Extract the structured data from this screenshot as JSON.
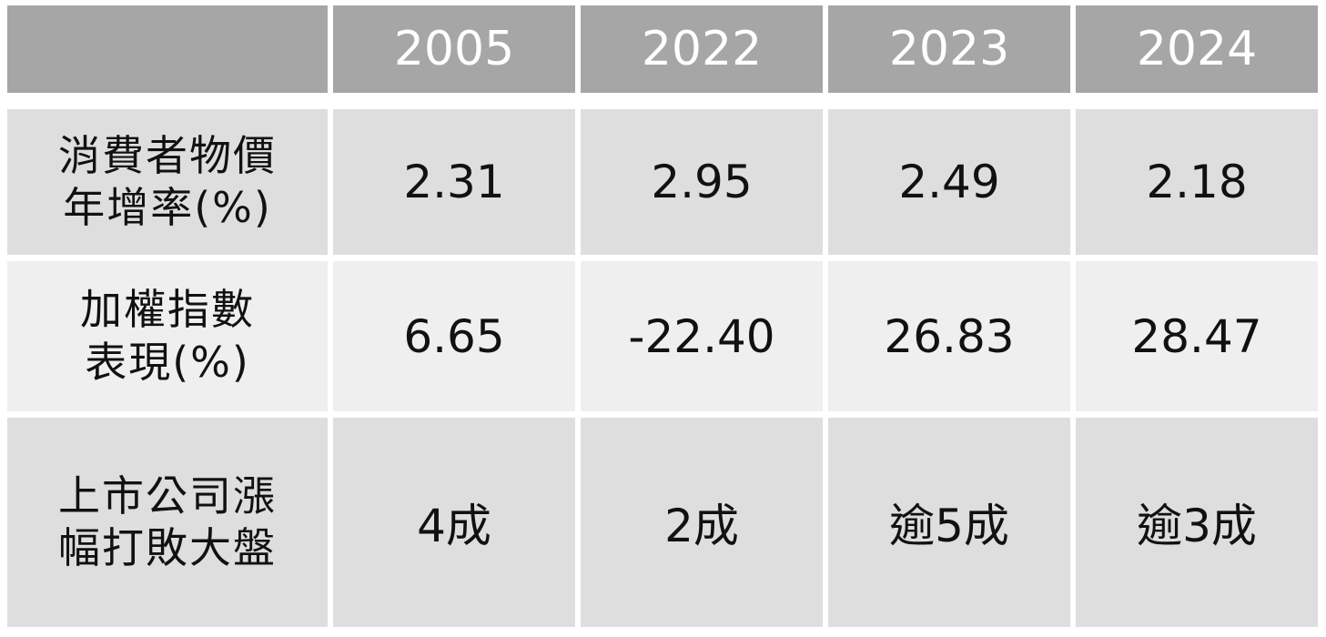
{
  "table": {
    "header": [
      "2005",
      "2022",
      "2023",
      "2024"
    ],
    "rows": [
      {
        "label": [
          "消費者物價",
          "年增率(%)"
        ],
        "cells": [
          "2.31",
          "2.95",
          "2.49",
          "2.18"
        ]
      },
      {
        "label": [
          "加權指數",
          "表現(%)"
        ],
        "cells": [
          "6.65",
          "-22.40",
          "26.83",
          "28.47"
        ]
      },
      {
        "label": [
          "上市公司漲",
          "幅打敗大盤"
        ],
        "cells": [
          "4成",
          "2成",
          "逾5成",
          "逾3成"
        ]
      }
    ]
  }
}
